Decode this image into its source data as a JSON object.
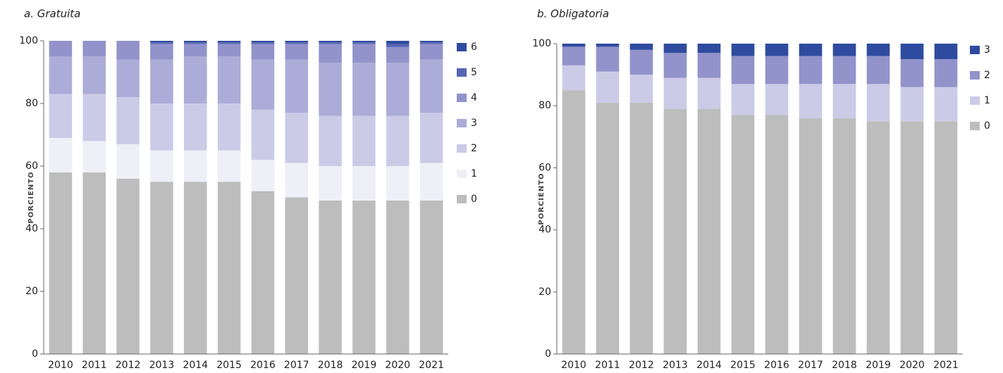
{
  "chart_data": [
    {
      "type": "stacked_bar",
      "title": "a. Gratuita",
      "y_label": "PORCIENTO",
      "categories": [
        "2010",
        "2011",
        "2012",
        "2013",
        "2014",
        "2015",
        "2016",
        "2017",
        "2018",
        "2019",
        "2020",
        "2021"
      ],
      "ylim": [
        0,
        100
      ],
      "yticks": [
        0,
        20,
        40,
        60,
        80,
        100
      ],
      "series": [
        {
          "name": "0",
          "color": "#bdbdbd",
          "values": [
            58,
            58,
            56,
            55,
            55,
            55,
            52,
            50,
            49,
            49,
            49,
            49
          ]
        },
        {
          "name": "1",
          "color": "#efeff8",
          "values": [
            11,
            10,
            11,
            10,
            10,
            10,
            10,
            11,
            11,
            11,
            11,
            12
          ]
        },
        {
          "name": "2",
          "color": "#cbcbe8",
          "values": [
            14,
            15,
            15,
            15,
            15,
            15,
            16,
            16,
            16,
            16,
            16,
            16
          ]
        },
        {
          "name": "3",
          "color": "#acacd8",
          "values": [
            12,
            12,
            12,
            14,
            15,
            15,
            16,
            17,
            17,
            17,
            17,
            17
          ]
        },
        {
          "name": "4",
          "color": "#9193ca",
          "values": [
            5,
            5,
            6,
            5,
            4,
            4,
            5,
            5,
            6,
            6,
            5,
            5
          ]
        },
        {
          "name": "5",
          "color": "#5865b3",
          "values": [
            0,
            0,
            0,
            0.5,
            0.5,
            0.5,
            0.5,
            0.5,
            0.5,
            0.5,
            1,
            0.5
          ]
        },
        {
          "name": "6",
          "color": "#2f4b9f",
          "values": [
            0,
            0,
            0,
            0.5,
            0.5,
            0.5,
            0.5,
            0.5,
            0.5,
            0.5,
            1,
            0.5
          ]
        }
      ]
    },
    {
      "type": "stacked_bar",
      "title": "b. Obligatoria",
      "y_label": "PORCIENTO",
      "categories": [
        "2010",
        "2011",
        "2012",
        "2013",
        "2014",
        "2015",
        "2016",
        "2017",
        "2018",
        "2019",
        "2020",
        "2021"
      ],
      "ylim": [
        0,
        100
      ],
      "yticks": [
        0,
        20,
        40,
        60,
        80,
        100
      ],
      "series": [
        {
          "name": "0",
          "color": "#bdbdbd",
          "values": [
            85,
            81,
            81,
            79,
            79,
            77,
            77,
            76,
            76,
            75,
            75,
            75
          ]
        },
        {
          "name": "1",
          "color": "#cbcbe8",
          "values": [
            8,
            10,
            9,
            10,
            10,
            10,
            10,
            11,
            11,
            12,
            11,
            11
          ]
        },
        {
          "name": "2",
          "color": "#9193ca",
          "values": [
            6,
            8,
            8,
            8,
            8,
            9,
            9,
            9,
            9,
            9,
            9,
            9
          ]
        },
        {
          "name": "3",
          "color": "#2f4b9f",
          "values": [
            1,
            1,
            2,
            3,
            3,
            4,
            4,
            4,
            4,
            4,
            5,
            5
          ]
        }
      ]
    }
  ]
}
